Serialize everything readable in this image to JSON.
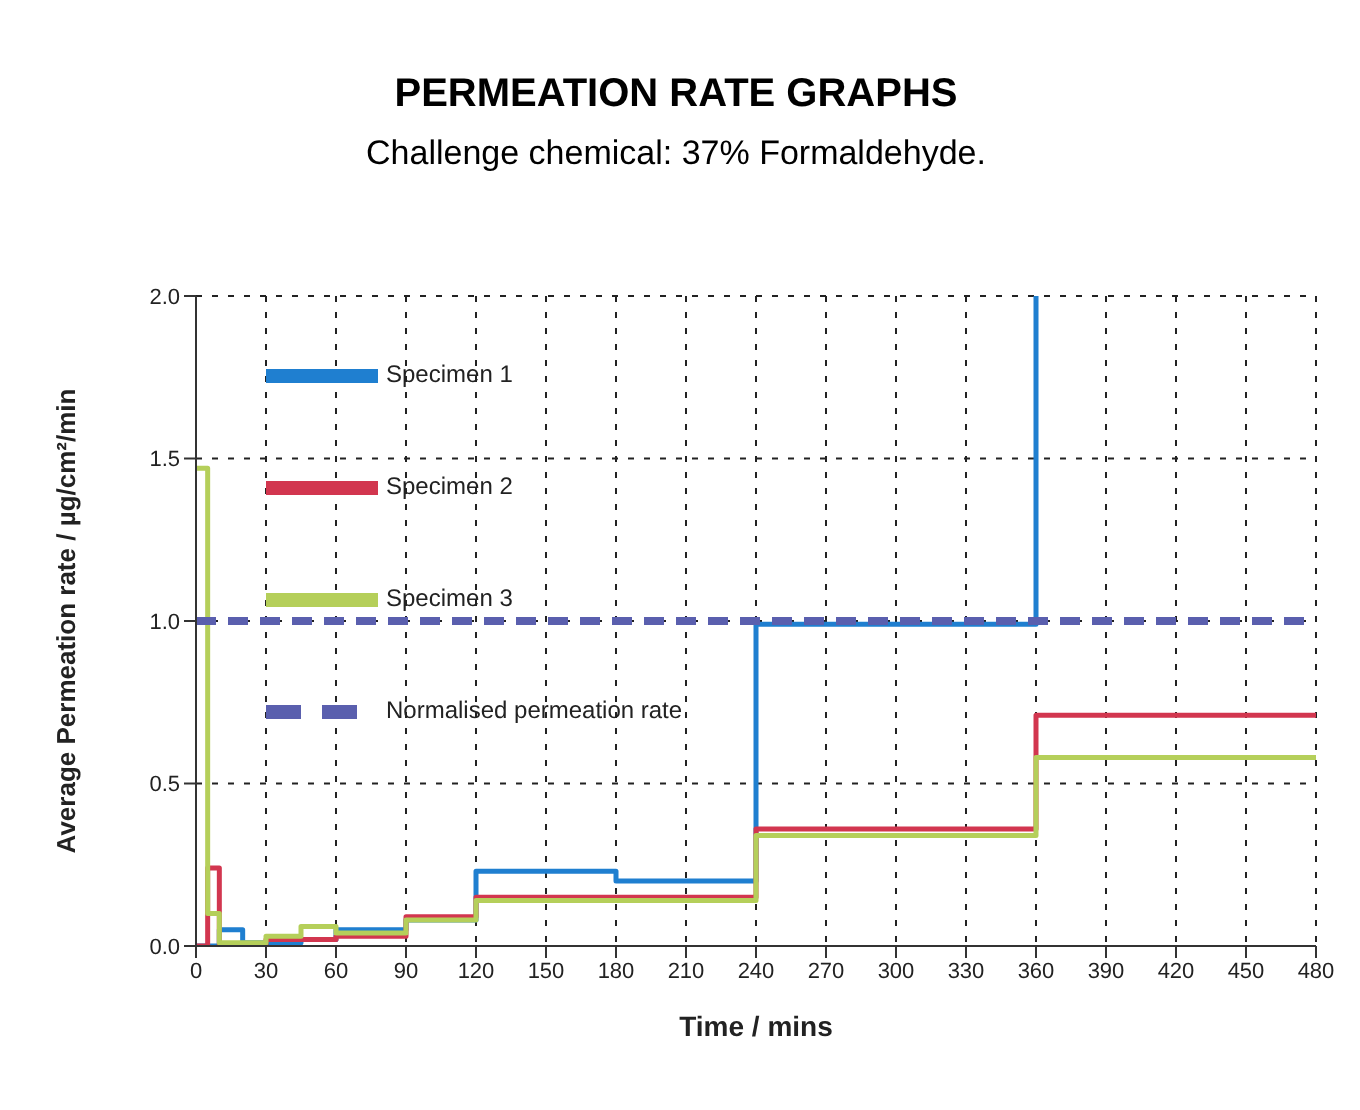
{
  "chart_data": {
    "type": "step",
    "title": "PERMEATION RATE GRAPHS",
    "subtitle": "Challenge chemical: 37% Formaldehyde.",
    "xlabel": "Time / mins",
    "ylabel": "Average Permeation rate / µg/cm²/min",
    "xlim": [
      0,
      480
    ],
    "xticks": [
      0,
      30,
      60,
      90,
      120,
      150,
      180,
      210,
      240,
      270,
      300,
      330,
      360,
      390,
      420,
      450,
      480
    ],
    "ylim": [
      0,
      2
    ],
    "yticks": [
      {
        "value": 0,
        "label": "0.0"
      },
      {
        "value": 0.5,
        "label": "0.5"
      },
      {
        "value": 1,
        "label": "1.0"
      },
      {
        "value": 1.5,
        "label": "1.5"
      },
      {
        "value": 2,
        "label": "2.0"
      }
    ],
    "grid": true,
    "legend": "top left",
    "marker": "none",
    "series": [
      {
        "name": "Specimen 1",
        "color": "#1f7fd0",
        "x": [
          0,
          10,
          20,
          45,
          60,
          90,
          120,
          180,
          240,
          360
        ],
        "values": [
          0,
          0.05,
          0.01,
          0.02,
          0.05,
          0.08,
          0.23,
          0.2,
          0.99,
          2.0
        ]
      },
      {
        "name": "Specimen 2",
        "color": "#d2364f",
        "x": [
          0,
          5,
          10,
          30,
          60,
          90,
          120,
          240,
          360,
          480
        ],
        "values": [
          0,
          0.24,
          0,
          0.02,
          0.03,
          0.09,
          0.15,
          0.36,
          0.71,
          0.71
        ]
      },
      {
        "name": "Specimen 3",
        "color": "#b5cf5a",
        "x": [
          0,
          5,
          10,
          30,
          45,
          60,
          90,
          120,
          240,
          360,
          480
        ],
        "values": [
          1.47,
          0.1,
          0.01,
          0.03,
          0.06,
          0.04,
          0.08,
          0.14,
          0.34,
          0.58,
          0.58
        ]
      },
      {
        "name": "Normalised permeation rate",
        "color": "#5a5fae",
        "line_style": "dashed",
        "x": [
          0,
          480
        ],
        "values": [
          1,
          1
        ]
      }
    ]
  }
}
